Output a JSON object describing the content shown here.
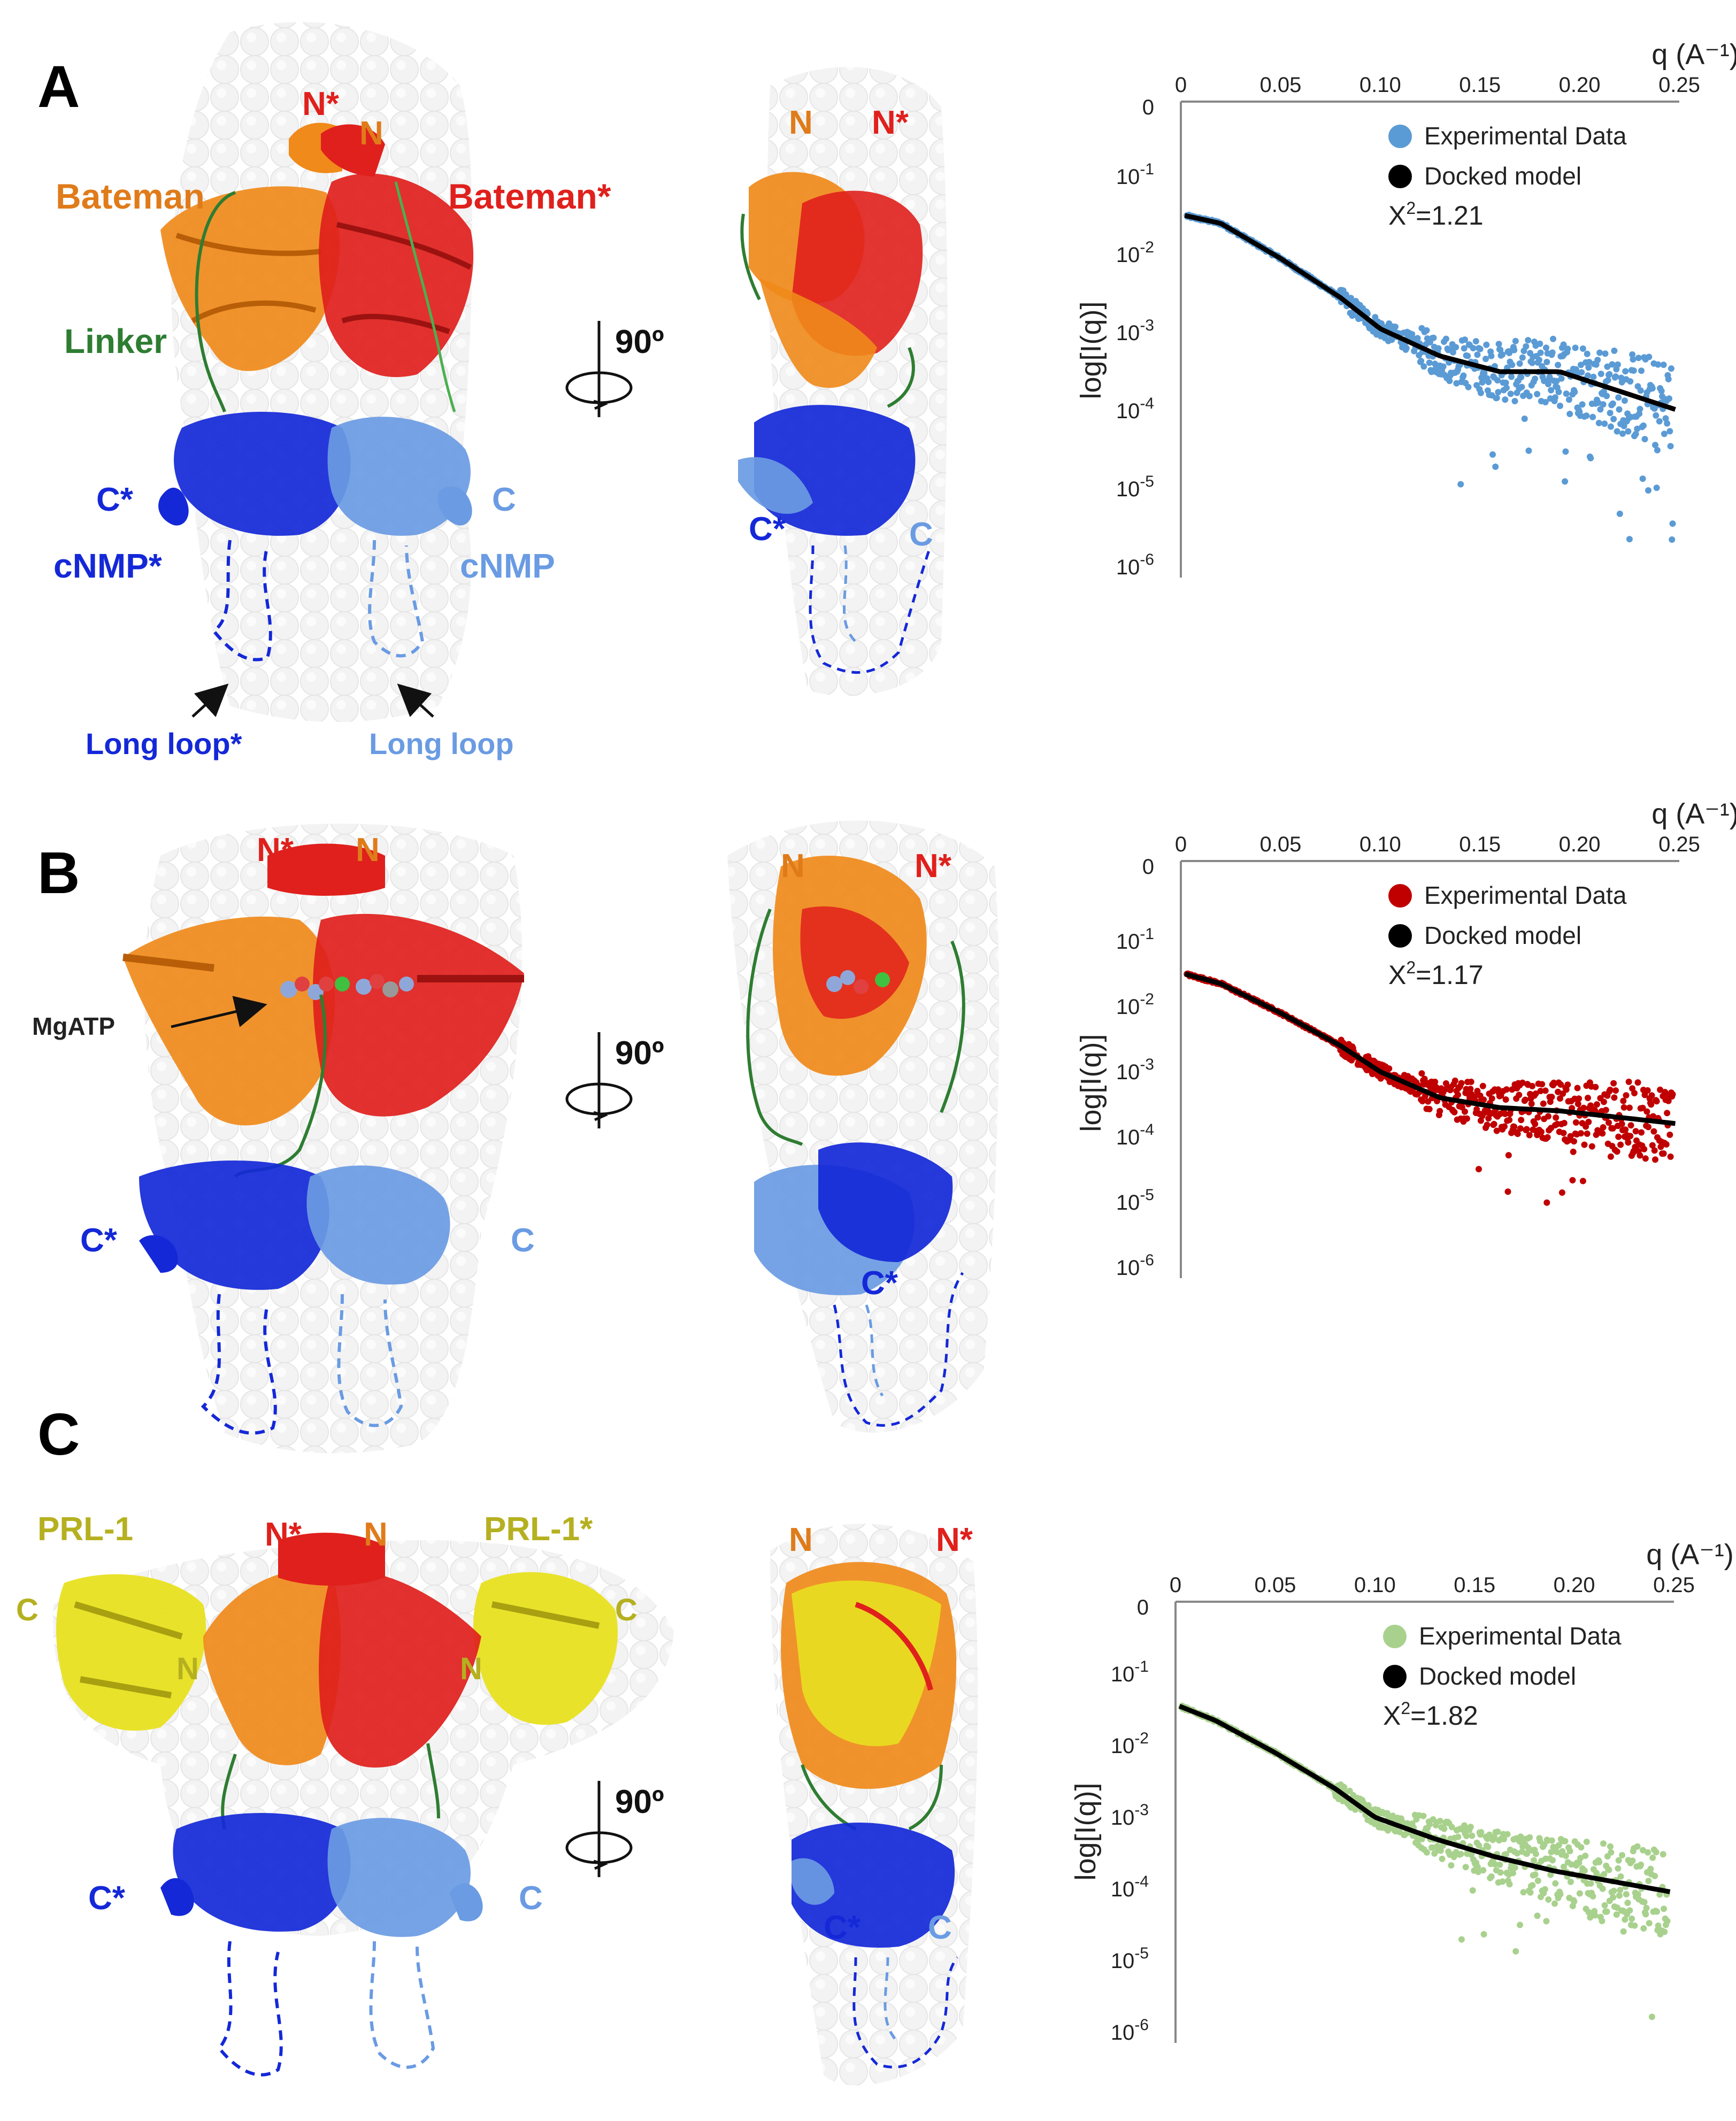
{
  "panels": [
    {
      "letter": "A",
      "front_labels": {
        "n_star": "N*",
        "n": "N",
        "bateman": "Bateman",
        "bateman_star": "Bateman*",
        "linker": "Linker",
        "c_star": "C*",
        "c": "C",
        "cnmp_star": "cNMP*",
        "cnmp": "cNMP",
        "long_loop_star": "Long loop*",
        "long_loop": "Long loop"
      },
      "side_labels": {
        "n": "N",
        "n_star": "N*",
        "c_star": "C*",
        "c": "C"
      },
      "rotation": "90º"
    },
    {
      "letter": "B",
      "front_labels": {
        "n_star": "N*",
        "n": "N",
        "mgatp": "MgATP",
        "c_star": "C*",
        "c": "C"
      },
      "side_labels": {
        "n": "N",
        "n_star": "N*",
        "c_star": "C*"
      },
      "rotation": "90º"
    },
    {
      "letter": "C",
      "front_labels": {
        "prl1": "PRL-1",
        "prl1_star": "PRL-1*",
        "n_star": "N*",
        "n": "N",
        "c_left": "C",
        "n_left": "N",
        "n_right": "N",
        "c_right": "C",
        "c_star": "C*",
        "c": "C"
      },
      "side_labels": {
        "n": "N",
        "n_star": "N*",
        "c_star": "C*",
        "c": "C"
      },
      "rotation": "90º"
    }
  ],
  "colors": {
    "orange": "#F08A1A",
    "red": "#E0201C",
    "green": "#2E7D32",
    "blue": "#1428D8",
    "lightblue": "#6A9BE3",
    "yellow": "#E8E020",
    "olive": "#B5B020",
    "orangelabel": "#E07B1A"
  },
  "chart_data": [
    {
      "type": "scatter",
      "x_axis_label": "q (A⁻¹)",
      "y_axis_label": "log[I(q)]",
      "x_ticks": [
        "0",
        "0.05",
        "0.10",
        "0.15",
        "0.20",
        "0.25"
      ],
      "y_ticks": [
        "0",
        "10-1",
        "10-2",
        "10-3",
        "10-4",
        "10-5",
        "10-6"
      ],
      "xlim": [
        0,
        0.25
      ],
      "ylim_log10": [
        -6,
        0
      ],
      "y_scale": "log",
      "legend_position": "top-right",
      "series": [
        {
          "name": "Experimental Data",
          "kind": "scatter",
          "color": "#5B9BD5"
        },
        {
          "name": "Docked model",
          "kind": "line",
          "color": "#000000",
          "x": [
            0.002,
            0.02,
            0.05,
            0.08,
            0.1,
            0.13,
            0.16,
            0.19,
            0.22,
            0.25
          ],
          "y_log10": [
            -1.5,
            -1.6,
            -2.05,
            -2.55,
            -2.95,
            -3.3,
            -3.5,
            -3.5,
            -3.75,
            -4.0
          ]
        }
      ],
      "chi2_label": "X",
      "chi2_sup": "2",
      "chi2_value": "=1.21"
    },
    {
      "type": "scatter",
      "x_axis_label": "q (A⁻¹)",
      "y_axis_label": "log[I(q)]",
      "x_ticks": [
        "0",
        "0.05",
        "0.10",
        "0.15",
        "0.20",
        "0.25"
      ],
      "y_ticks": [
        "0",
        "10-1",
        "10-2",
        "10-3",
        "10-4",
        "10-5",
        "10-6"
      ],
      "xlim": [
        0,
        0.25
      ],
      "ylim_log10": [
        -6,
        0
      ],
      "y_scale": "log",
      "legend_position": "top-right",
      "series": [
        {
          "name": "Experimental Data",
          "kind": "scatter",
          "color": "#C00000"
        },
        {
          "name": "Docked model",
          "kind": "line",
          "color": "#000000",
          "x": [
            0.002,
            0.02,
            0.05,
            0.08,
            0.1,
            0.13,
            0.16,
            0.19,
            0.22,
            0.25
          ],
          "y_log10": [
            -1.5,
            -1.65,
            -2.1,
            -2.6,
            -3.0,
            -3.4,
            -3.55,
            -3.6,
            -3.7,
            -3.8
          ]
        }
      ],
      "chi2_label": "X",
      "chi2_sup": "2",
      "chi2_value": "=1.17"
    },
    {
      "type": "scatter",
      "x_axis_label": "q (A⁻¹)",
      "y_axis_label": "log[I(q)]",
      "x_ticks": [
        "0",
        "0.05",
        "0.10",
        "0.15",
        "0.20",
        "0.25"
      ],
      "y_ticks": [
        "0",
        "10-1",
        "10-2",
        "10-3",
        "10-4",
        "10-5",
        "10-6"
      ],
      "xlim": [
        0,
        0.25
      ],
      "ylim_log10": [
        -6,
        0
      ],
      "y_scale": "log",
      "legend_position": "top-right",
      "series": [
        {
          "name": "Experimental Data",
          "kind": "scatter",
          "color": "#A9D18E"
        },
        {
          "name": "Docked model",
          "kind": "line",
          "color": "#000000",
          "x": [
            0.002,
            0.02,
            0.05,
            0.08,
            0.1,
            0.13,
            0.16,
            0.19,
            0.22,
            0.25
          ],
          "y_log10": [
            -1.45,
            -1.65,
            -2.1,
            -2.6,
            -3.0,
            -3.3,
            -3.55,
            -3.75,
            -3.9,
            -4.05
          ]
        }
      ],
      "chi2_label": "X",
      "chi2_sup": "2",
      "chi2_value": "=1.82"
    }
  ]
}
